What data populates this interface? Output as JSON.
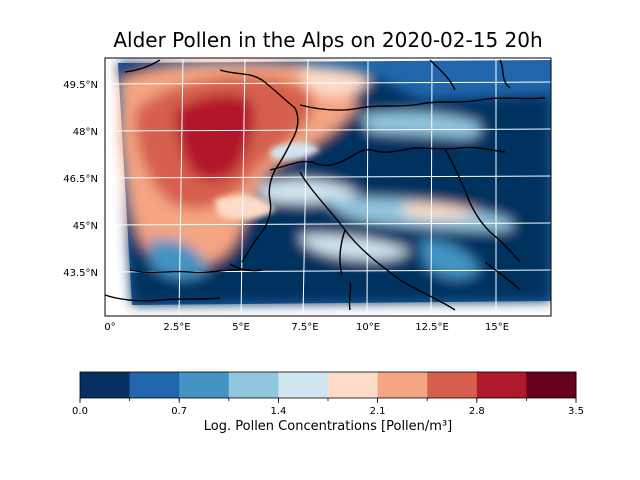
{
  "title": "Alder Pollen in the Alps on 2020-02-15 20h",
  "map": {
    "lat_ticks": [
      "49.5°N",
      "48°N",
      "46.5°N",
      "45°N",
      "43.5°N"
    ],
    "lon_ticks": [
      "0°",
      "2.5°E",
      "5°E",
      "7.5°E",
      "10°E",
      "12.5°E",
      "15°E"
    ],
    "grid": true,
    "coastlines_borders": true
  },
  "colorbar": {
    "label": "Log. Pollen Concentrations [Pollen/m³]",
    "tick_labels": [
      "0.0",
      "0.7",
      "1.4",
      "2.1",
      "2.8",
      "3.5"
    ],
    "range": [
      0.0,
      3.5
    ],
    "levels": 10,
    "colors": [
      "#053061",
      "#2166ac",
      "#4393c3",
      "#92c5de",
      "#d1e5f0",
      "#fddbc7",
      "#f4a582",
      "#d6604d",
      "#b2182b",
      "#67001f"
    ]
  }
}
